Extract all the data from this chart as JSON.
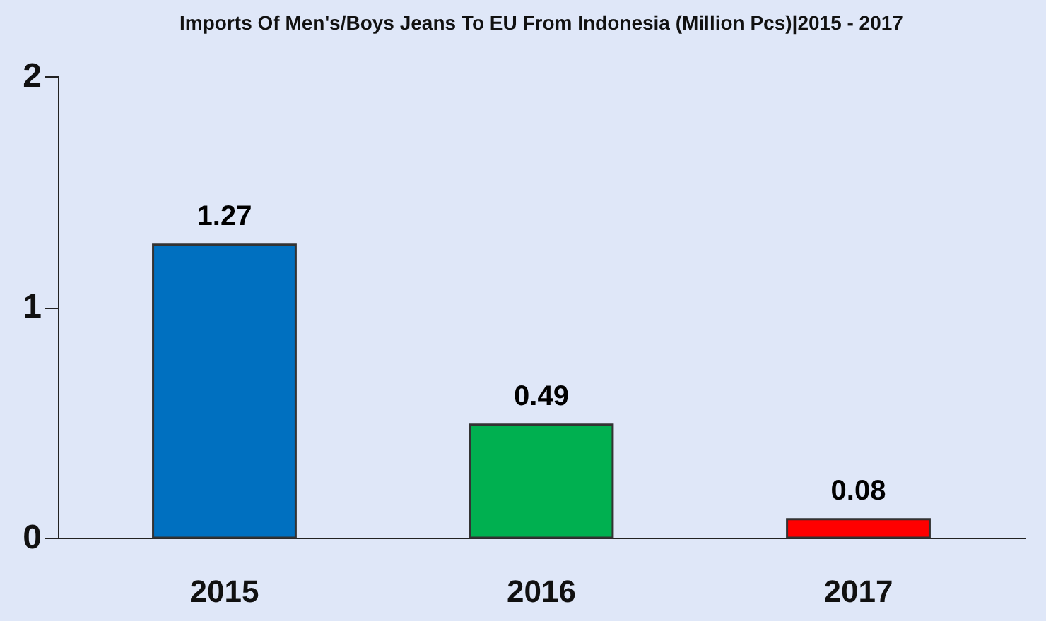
{
  "chart_data": {
    "type": "bar",
    "title": "Imports Of Men's/Boys Jeans To EU From Indonesia (Million Pcs)|2015 - 2017",
    "categories": [
      "2015",
      "2016",
      "2017"
    ],
    "values": [
      1.27,
      0.49,
      0.08
    ],
    "colors": [
      "#0070c0",
      "#00b050",
      "#ff0000"
    ],
    "ylim": [
      0,
      2
    ],
    "yticks": [
      0,
      1,
      2
    ],
    "grid": false,
    "data_labels": true
  }
}
